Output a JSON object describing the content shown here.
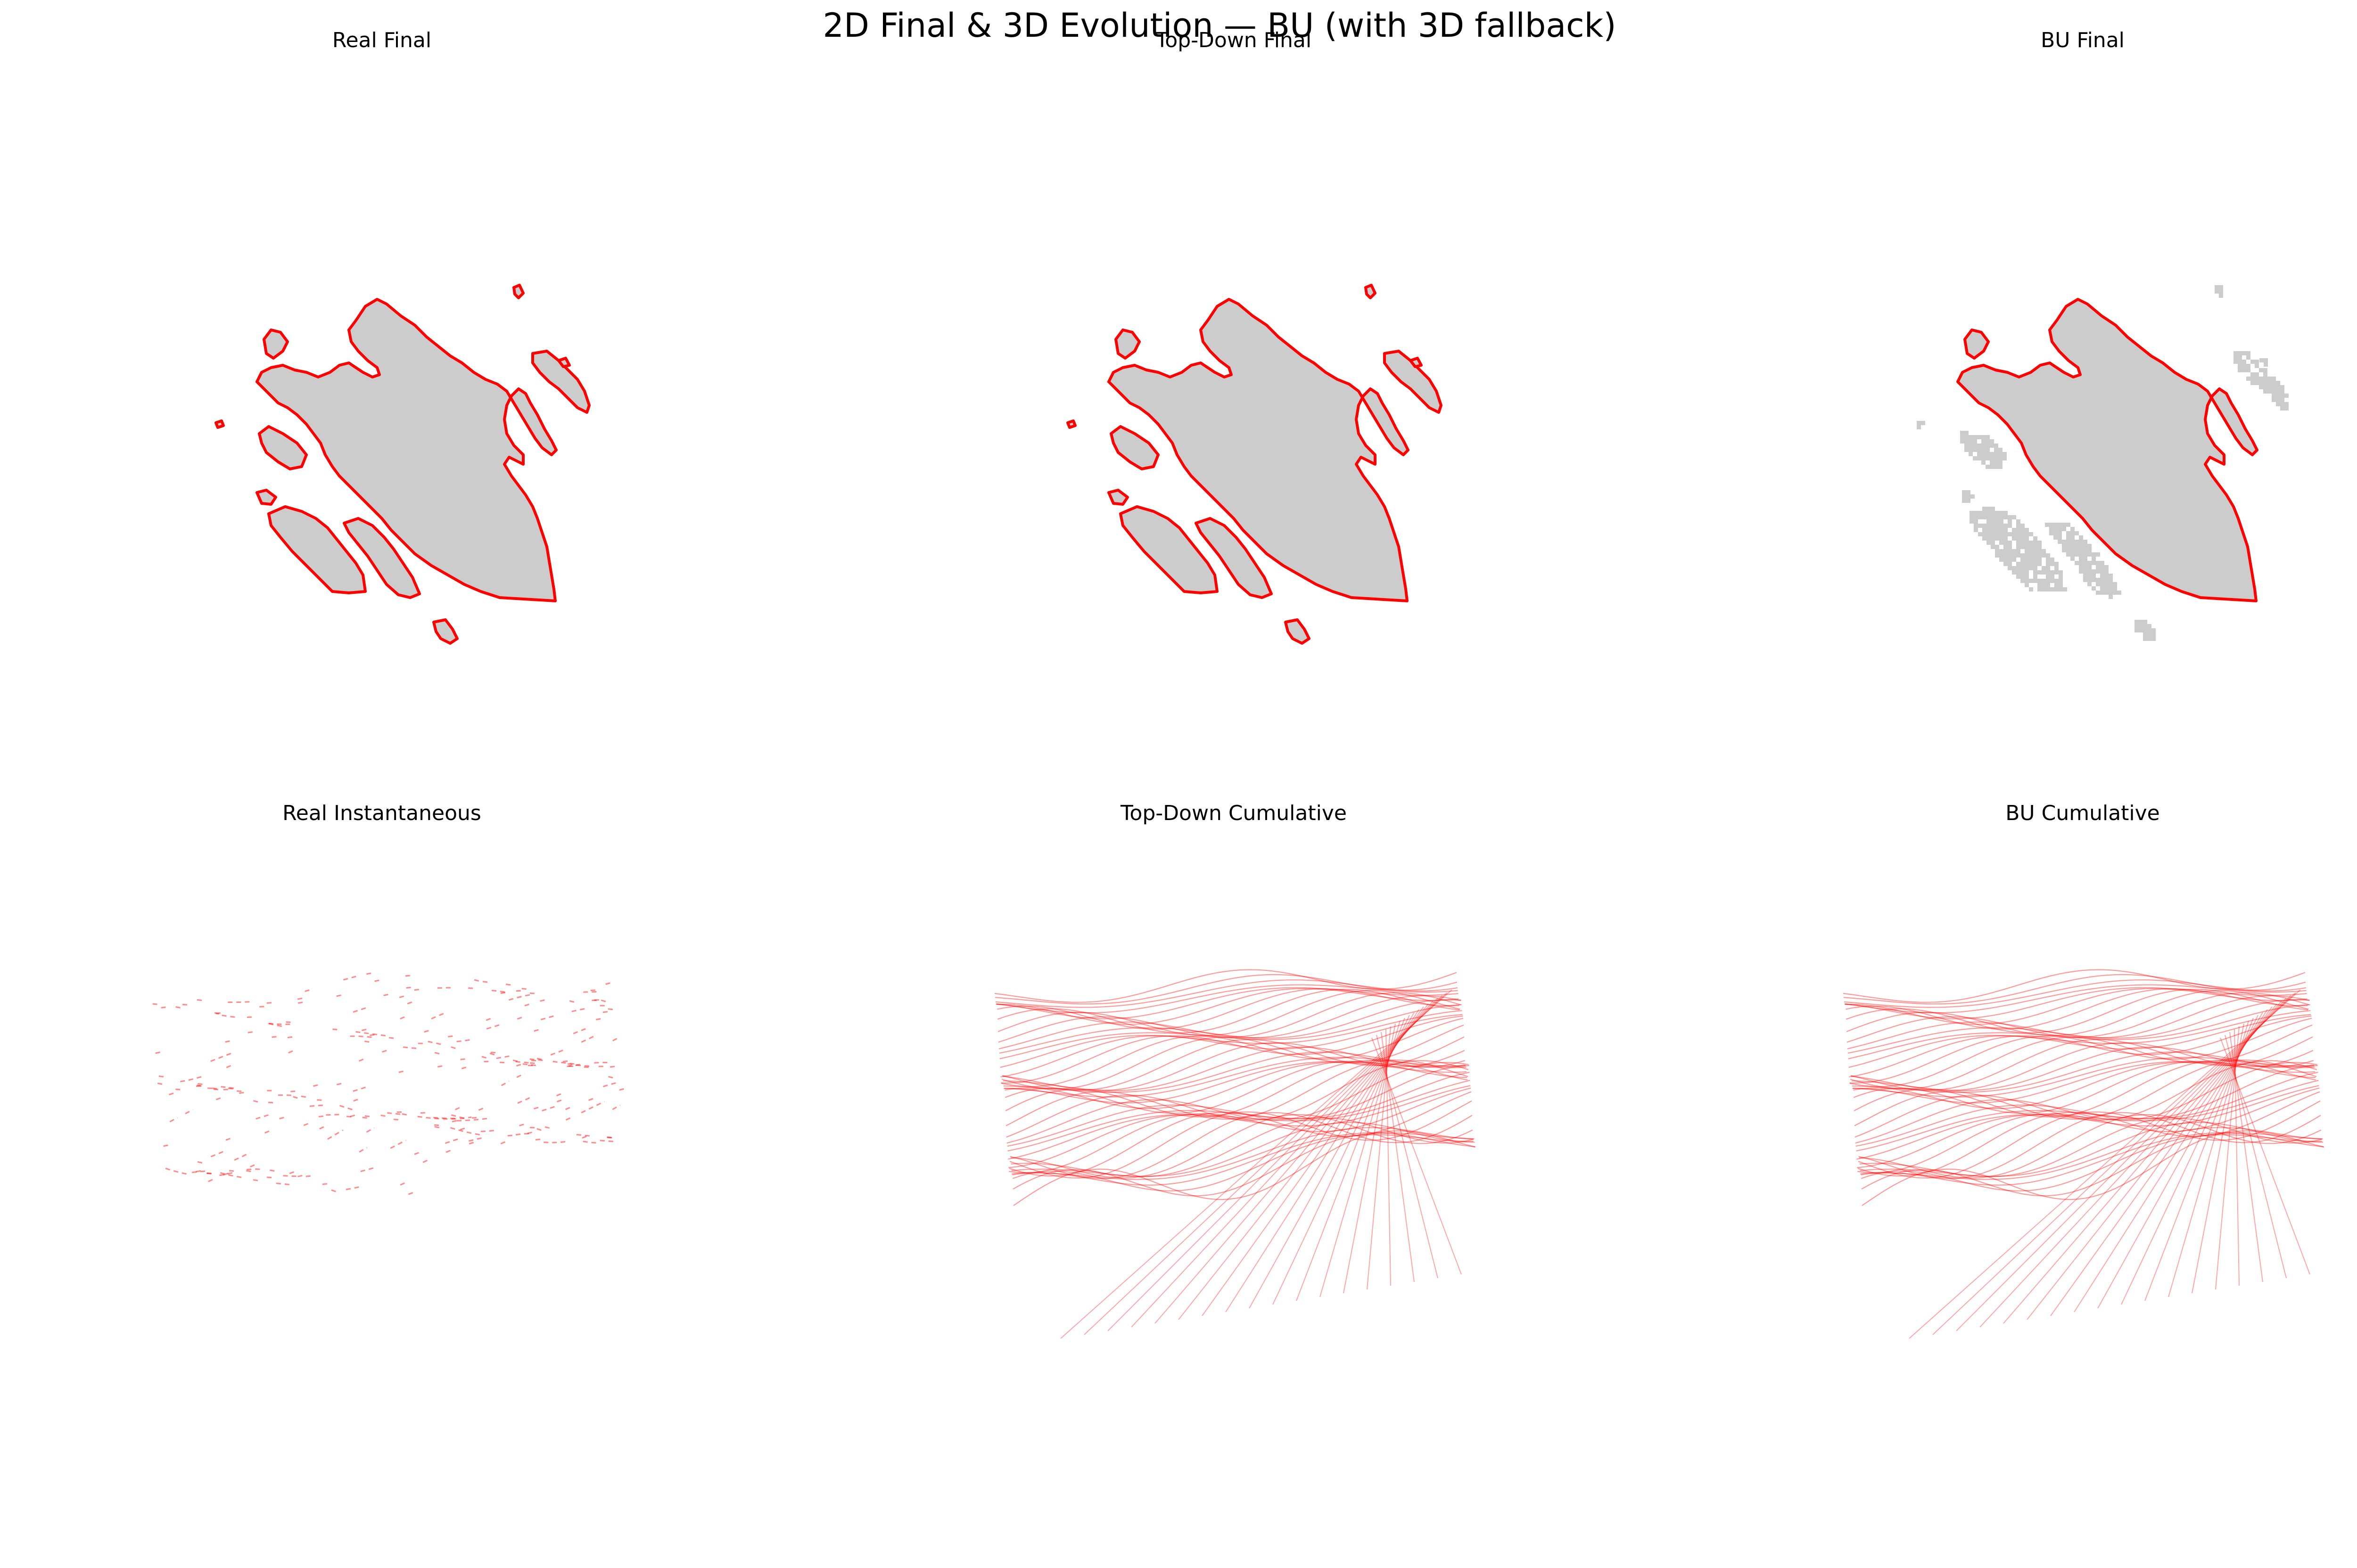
{
  "figure": {
    "suptitle": "2D Final & 3D Evolution — BU (with 3D fallback)"
  },
  "colors": {
    "fill": "#cccccc",
    "outline": "#ff0000",
    "contour": "#ff0000",
    "background": "#ffffff"
  },
  "chart_data": [
    {
      "type": "map",
      "title": "Real Final",
      "fill": "grey polygons",
      "outline": "red",
      "axes": "off"
    },
    {
      "type": "map",
      "title": "Top-Down Final",
      "fill": "grey polygons",
      "outline": "red",
      "axes": "off"
    },
    {
      "type": "map",
      "title": "BU Final",
      "fill": "grey raster",
      "outline": "red (main polygon only)",
      "axes": "off"
    },
    {
      "type": "3d-contour",
      "title": "Real Instantaneous",
      "style": "sparse red contour fragments",
      "axes": "off"
    },
    {
      "type": "3d-contour",
      "title": "Top-Down Cumulative",
      "style": "stacked red contour lines",
      "axes": "off"
    },
    {
      "type": "3d-contour",
      "title": "BU Cumulative",
      "style": "stacked red contour lines",
      "axes": "off"
    }
  ]
}
